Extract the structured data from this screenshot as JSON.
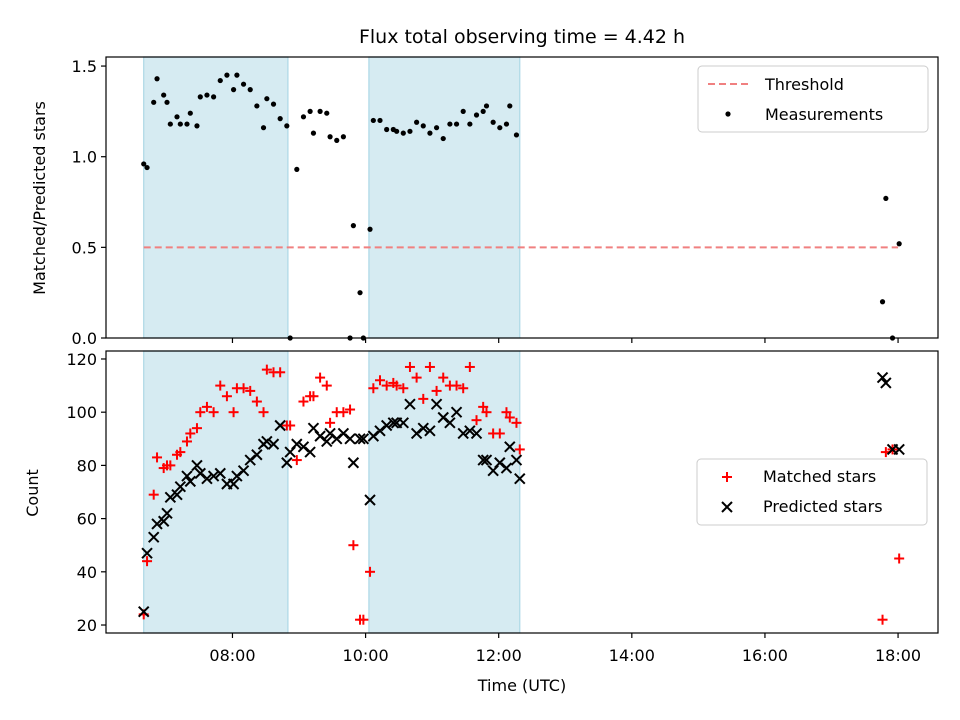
{
  "chart_data": [
    {
      "type": "scatter",
      "title": "Flux total observing time = 4.42 h",
      "xlabel": "",
      "ylabel": "Matched/Predicted stars",
      "xlim": [
        "06:06",
        "18:36"
      ],
      "ylim": [
        0,
        1.55
      ],
      "yticks": [
        "0.0",
        "0.5",
        "1.0",
        "1.5"
      ],
      "legend_position": "top-right",
      "shaded_intervals": [
        [
          "06:40",
          "08:50"
        ],
        [
          "10:03",
          "12:19"
        ]
      ],
      "shade_color": "#add8e6",
      "threshold": {
        "name": "Threshold",
        "value": 0.5,
        "color": "#f08080",
        "x_range": [
          "06:40",
          "18:00"
        ]
      },
      "series": [
        {
          "name": "Measurements",
          "color": "#000000",
          "points": [
            [
              "06:40",
              0.96
            ],
            [
              "06:43",
              0.94
            ],
            [
              "06:49",
              1.3
            ],
            [
              "06:52",
              1.43
            ],
            [
              "06:58",
              1.34
            ],
            [
              "07:01",
              1.3
            ],
            [
              "07:04",
              1.18
            ],
            [
              "07:10",
              1.22
            ],
            [
              "07:13",
              1.18
            ],
            [
              "07:19",
              1.18
            ],
            [
              "07:22",
              1.24
            ],
            [
              "07:28",
              1.17
            ],
            [
              "07:31",
              1.33
            ],
            [
              "07:37",
              1.34
            ],
            [
              "07:43",
              1.33
            ],
            [
              "07:49",
              1.42
            ],
            [
              "07:55",
              1.45
            ],
            [
              "08:01",
              1.37
            ],
            [
              "08:04",
              1.45
            ],
            [
              "08:10",
              1.4
            ],
            [
              "08:16",
              1.37
            ],
            [
              "08:22",
              1.28
            ],
            [
              "08:28",
              1.16
            ],
            [
              "08:31",
              1.32
            ],
            [
              "08:37",
              1.29
            ],
            [
              "08:43",
              1.21
            ],
            [
              "08:49",
              1.17
            ],
            [
              "08:52",
              0.0
            ],
            [
              "08:58",
              0.93
            ],
            [
              "09:04",
              1.22
            ],
            [
              "09:10",
              1.25
            ],
            [
              "09:13",
              1.13
            ],
            [
              "09:19",
              1.25
            ],
            [
              "09:25",
              1.24
            ],
            [
              "09:28",
              1.11
            ],
            [
              "09:34",
              1.09
            ],
            [
              "09:40",
              1.11
            ],
            [
              "09:46",
              0.0
            ],
            [
              "09:49",
              0.62
            ],
            [
              "09:55",
              0.25
            ],
            [
              "09:58",
              0.0
            ],
            [
              "10:04",
              0.6
            ],
            [
              "10:07",
              1.2
            ],
            [
              "10:13",
              1.2
            ],
            [
              "10:19",
              1.15
            ],
            [
              "10:25",
              1.15
            ],
            [
              "10:28",
              1.14
            ],
            [
              "10:34",
              1.13
            ],
            [
              "10:40",
              1.14
            ],
            [
              "10:46",
              1.19
            ],
            [
              "10:52",
              1.17
            ],
            [
              "10:58",
              1.13
            ],
            [
              "11:04",
              1.16
            ],
            [
              "11:10",
              1.1
            ],
            [
              "11:16",
              1.18
            ],
            [
              "11:22",
              1.18
            ],
            [
              "11:28",
              1.25
            ],
            [
              "11:34",
              1.18
            ],
            [
              "11:40",
              1.23
            ],
            [
              "11:46",
              1.25
            ],
            [
              "11:49",
              1.28
            ],
            [
              "11:55",
              1.19
            ],
            [
              "12:01",
              1.16
            ],
            [
              "12:07",
              1.18
            ],
            [
              "12:10",
              1.28
            ],
            [
              "12:16",
              1.12
            ],
            [
              "17:46",
              0.2
            ],
            [
              "17:49",
              0.77
            ],
            [
              "17:55",
              0.0
            ],
            [
              "18:01",
              0.52
            ]
          ]
        }
      ]
    },
    {
      "type": "scatter",
      "title": "",
      "xlabel": "Time (UTC)",
      "ylabel": "Count",
      "xlim": [
        "06:06",
        "18:36"
      ],
      "ylim": [
        17,
        123
      ],
      "yticks": [
        "20",
        "40",
        "60",
        "80",
        "100",
        "120"
      ],
      "xticks": [
        "08:00",
        "10:00",
        "12:00",
        "14:00",
        "16:00",
        "18:00"
      ],
      "legend_position": "center-right",
      "shaded_intervals": [
        [
          "06:40",
          "08:50"
        ],
        [
          "10:03",
          "12:19"
        ]
      ],
      "shade_color": "#add8e6",
      "series": [
        {
          "name": "Matched stars",
          "marker": "+",
          "color": "#ff0000",
          "points": [
            [
              "06:40",
              24
            ],
            [
              "06:43",
              44
            ],
            [
              "06:49",
              69
            ],
            [
              "06:52",
              83
            ],
            [
              "06:58",
              79
            ],
            [
              "07:01",
              80
            ],
            [
              "07:04",
              80
            ],
            [
              "07:10",
              84
            ],
            [
              "07:13",
              85
            ],
            [
              "07:19",
              89
            ],
            [
              "07:22",
              92
            ],
            [
              "07:28",
              94
            ],
            [
              "07:31",
              100
            ],
            [
              "07:37",
              102
            ],
            [
              "07:43",
              100
            ],
            [
              "07:49",
              110
            ],
            [
              "07:55",
              106
            ],
            [
              "08:01",
              100
            ],
            [
              "08:04",
              109
            ],
            [
              "08:10",
              109
            ],
            [
              "08:16",
              108
            ],
            [
              "08:22",
              104
            ],
            [
              "08:28",
              100
            ],
            [
              "08:31",
              116
            ],
            [
              "08:37",
              115
            ],
            [
              "08:43",
              115
            ],
            [
              "08:49",
              95
            ],
            [
              "08:52",
              95
            ],
            [
              "08:58",
              82
            ],
            [
              "09:04",
              104
            ],
            [
              "09:10",
              106
            ],
            [
              "09:13",
              106
            ],
            [
              "09:19",
              113
            ],
            [
              "09:25",
              110
            ],
            [
              "09:28",
              96
            ],
            [
              "09:34",
              100
            ],
            [
              "09:40",
              100
            ],
            [
              "09:46",
              101
            ],
            [
              "09:49",
              50
            ],
            [
              "09:55",
              22
            ],
            [
              "09:58",
              22
            ],
            [
              "10:04",
              40
            ],
            [
              "10:07",
              109
            ],
            [
              "10:13",
              112
            ],
            [
              "10:19",
              110
            ],
            [
              "10:25",
              111
            ],
            [
              "10:28",
              110
            ],
            [
              "10:34",
              109
            ],
            [
              "10:40",
              117
            ],
            [
              "10:46",
              113
            ],
            [
              "10:52",
              105
            ],
            [
              "10:58",
              117
            ],
            [
              "11:04",
              108
            ],
            [
              "11:10",
              113
            ],
            [
              "11:16",
              110
            ],
            [
              "11:22",
              110
            ],
            [
              "11:28",
              109
            ],
            [
              "11:34",
              117
            ],
            [
              "11:40",
              97
            ],
            [
              "11:46",
              102
            ],
            [
              "11:49",
              100
            ],
            [
              "11:55",
              92
            ],
            [
              "12:01",
              92
            ],
            [
              "12:07",
              100
            ],
            [
              "12:10",
              98
            ],
            [
              "12:16",
              96
            ],
            [
              "12:19",
              86
            ],
            [
              "17:46",
              22
            ],
            [
              "17:49",
              85
            ],
            [
              "17:55",
              86
            ],
            [
              "18:01",
              45
            ]
          ]
        },
        {
          "name": "Predicted stars",
          "marker": "x",
          "color": "#000000",
          "points": [
            [
              "06:40",
              25
            ],
            [
              "06:43",
              47
            ],
            [
              "06:49",
              53
            ],
            [
              "06:52",
              58
            ],
            [
              "06:58",
              59
            ],
            [
              "07:01",
              62
            ],
            [
              "07:04",
              68
            ],
            [
              "07:10",
              69
            ],
            [
              "07:13",
              72
            ],
            [
              "07:19",
              76
            ],
            [
              "07:22",
              74
            ],
            [
              "07:28",
              80
            ],
            [
              "07:31",
              77
            ],
            [
              "07:37",
              75
            ],
            [
              "07:43",
              76
            ],
            [
              "07:49",
              77
            ],
            [
              "07:55",
              73
            ],
            [
              "08:01",
              73
            ],
            [
              "08:04",
              76
            ],
            [
              "08:10",
              78
            ],
            [
              "08:16",
              82
            ],
            [
              "08:22",
              84
            ],
            [
              "08:28",
              88
            ],
            [
              "08:31",
              89
            ],
            [
              "08:37",
              88
            ],
            [
              "08:43",
              95
            ],
            [
              "08:49",
              81
            ],
            [
              "08:52",
              85
            ],
            [
              "08:58",
              88
            ],
            [
              "09:04",
              87
            ],
            [
              "09:10",
              85
            ],
            [
              "09:13",
              94
            ],
            [
              "09:19",
              91
            ],
            [
              "09:25",
              89
            ],
            [
              "09:28",
              92
            ],
            [
              "09:34",
              90
            ],
            [
              "09:40",
              92
            ],
            [
              "09:46",
              90
            ],
            [
              "09:49",
              81
            ],
            [
              "09:55",
              90
            ],
            [
              "09:58",
              90
            ],
            [
              "10:04",
              67
            ],
            [
              "10:07",
              91
            ],
            [
              "10:13",
              93
            ],
            [
              "10:19",
              95
            ],
            [
              "10:25",
              96
            ],
            [
              "10:28",
              96
            ],
            [
              "10:34",
              96
            ],
            [
              "10:40",
              103
            ],
            [
              "10:46",
              92
            ],
            [
              "10:52",
              94
            ],
            [
              "10:58",
              93
            ],
            [
              "11:04",
              103
            ],
            [
              "11:10",
              98
            ],
            [
              "11:16",
              96
            ],
            [
              "11:22",
              100
            ],
            [
              "11:28",
              92
            ],
            [
              "11:34",
              93
            ],
            [
              "11:40",
              92
            ],
            [
              "11:46",
              82
            ],
            [
              "11:49",
              82
            ],
            [
              "11:55",
              78
            ],
            [
              "12:01",
              81
            ],
            [
              "12:07",
              79
            ],
            [
              "12:10",
              87
            ],
            [
              "12:16",
              82
            ],
            [
              "12:19",
              75
            ],
            [
              "17:46",
              113
            ],
            [
              "17:49",
              111
            ],
            [
              "17:55",
              86
            ],
            [
              "18:01",
              86
            ]
          ]
        }
      ]
    }
  ]
}
